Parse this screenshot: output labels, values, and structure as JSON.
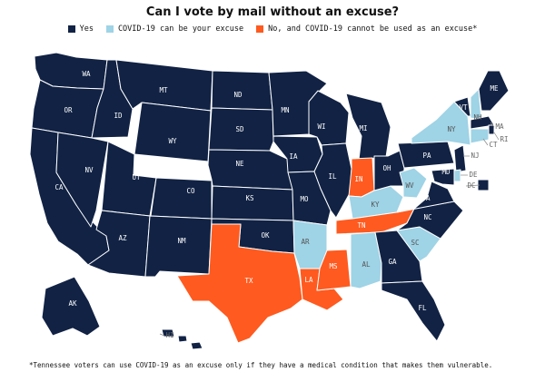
{
  "title": "Can I vote by mail without an excuse?",
  "legend": [
    {
      "key": "yes",
      "label": "Yes",
      "color": "#112244"
    },
    {
      "key": "covid",
      "label": "COVID-19 can be your excuse",
      "color": "#9fd3e6"
    },
    {
      "key": "no",
      "label": "No, and COVID-19 cannot be used as an excuse*",
      "color": "#ff5a1f"
    }
  ],
  "states": {
    "WA": "yes",
    "OR": "yes",
    "CA": "yes",
    "ID": "yes",
    "NV": "yes",
    "MT": "yes",
    "WY": "yes",
    "UT": "yes",
    "AZ": "yes",
    "CO": "yes",
    "NM": "yes",
    "ND": "yes",
    "SD": "yes",
    "NE": "yes",
    "KS": "yes",
    "OK": "yes",
    "TX": "no",
    "MN": "yes",
    "IA": "yes",
    "MO": "yes",
    "AR": "covid",
    "LA": "no",
    "WI": "yes",
    "IL": "yes",
    "MS": "no",
    "MI": "yes",
    "IN": "no",
    "KY": "covid",
    "TN": "no",
    "AL": "covid",
    "OH": "yes",
    "WV": "covid",
    "GA": "yes",
    "FL": "yes",
    "SC": "covid",
    "NC": "yes",
    "VA": "yes",
    "PA": "yes",
    "NY": "covid",
    "VT": "yes",
    "NH": "covid",
    "ME": "yes",
    "MA": "yes",
    "RI": "yes",
    "CT": "covid",
    "NJ": "yes",
    "DE": "covid",
    "MD": "yes",
    "DC": "yes",
    "AK": "yes",
    "HI": "yes"
  },
  "footnote": "*Tennessee voters can use COVID-19 as an excuse only if they have a medical condition that makes them vulnerable."
}
